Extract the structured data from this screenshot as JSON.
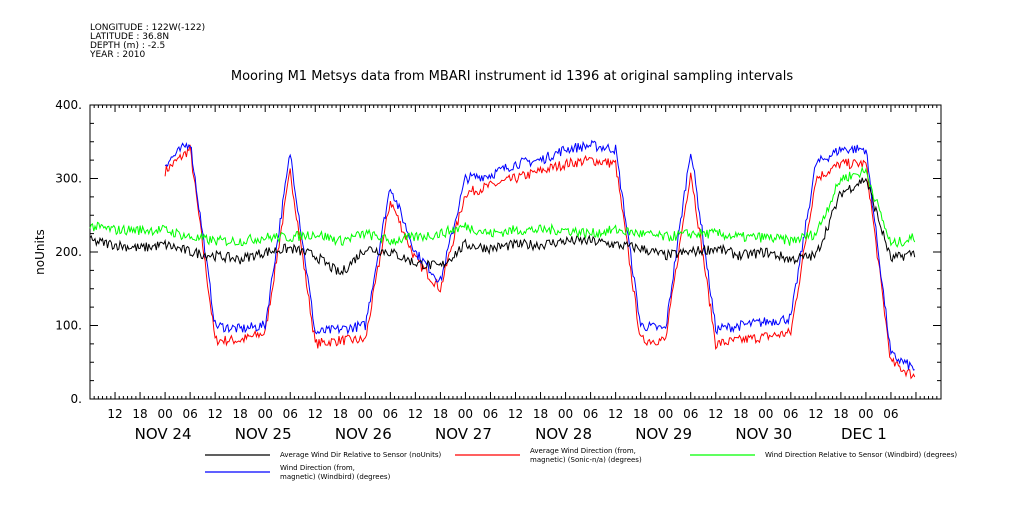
{
  "header": {
    "meta_lines": [
      "LONGITUDE : 122W(-122)",
      "LATITUDE : 36.8N",
      "DEPTH (m) : -2.5",
      "YEAR : 2010"
    ]
  },
  "chart_data": {
    "type": "line",
    "title": "Mooring M1 Metsys data from MBARI instrument id 1396 at original sampling intervals",
    "ylabel": "noUnits",
    "xlabel": "",
    "ylim": [
      0,
      400
    ],
    "xlim_hours": [
      -18,
      186
    ],
    "y_ticks": [
      0,
      100,
      200,
      300,
      400
    ],
    "x_tick_labels": [
      "12",
      "18",
      "00",
      "06",
      "12",
      "18",
      "00",
      "06",
      "12",
      "18",
      "00",
      "06",
      "12",
      "18",
      "00",
      "06",
      "12",
      "18",
      "00",
      "06",
      "12",
      "18",
      "00",
      "06",
      "12",
      "18",
      "00",
      "06",
      "12",
      "18",
      "00",
      "06"
    ],
    "date_labels": [
      "NOV 24",
      "NOV 25",
      "NOV 26",
      "NOV 27",
      "NOV 28",
      "NOV 29",
      "NOV 30",
      "DEC  1"
    ],
    "grid": false,
    "legend_position": "bottom",
    "series": [
      {
        "name": "Average Wind Dir Relative to Sensor (noUnits)",
        "color": "#000000"
      },
      {
        "name": "Average Wind Direction (from,\nmagnetic) (Sonic-n/a) (degrees)",
        "color": "#ff0000"
      },
      {
        "name": "Wind Direction Relative to Sensor (Windbird) (degrees)",
        "color": "#00ff00"
      },
      {
        "name": "Wind Direction (from,\nmagnetic) (Windbird) (degrees)",
        "color": "#0000ff"
      }
    ],
    "data_approx": {
      "black": [
        [
          -18,
          215
        ],
        [
          -12,
          210
        ],
        [
          -6,
          205
        ],
        [
          0,
          210
        ],
        [
          6,
          200
        ],
        [
          12,
          195
        ],
        [
          18,
          190
        ],
        [
          24,
          200
        ],
        [
          30,
          205
        ],
        [
          36,
          195
        ],
        [
          42,
          170
        ],
        [
          48,
          205
        ],
        [
          54,
          200
        ],
        [
          60,
          185
        ],
        [
          66,
          180
        ],
        [
          72,
          210
        ],
        [
          78,
          205
        ],
        [
          84,
          210
        ],
        [
          90,
          210
        ],
        [
          96,
          215
        ],
        [
          102,
          215
        ],
        [
          108,
          210
        ],
        [
          114,
          205
        ],
        [
          120,
          195
        ],
        [
          126,
          200
        ],
        [
          132,
          205
        ],
        [
          138,
          195
        ],
        [
          144,
          200
        ],
        [
          150,
          190
        ],
        [
          156,
          195
        ],
        [
          162,
          280
        ],
        [
          168,
          300
        ],
        [
          174,
          190
        ],
        [
          180,
          200
        ]
      ],
      "green": [
        [
          -18,
          235
        ],
        [
          -12,
          230
        ],
        [
          -6,
          230
        ],
        [
          0,
          230
        ],
        [
          6,
          220
        ],
        [
          12,
          215
        ],
        [
          18,
          215
        ],
        [
          24,
          220
        ],
        [
          30,
          220
        ],
        [
          36,
          225
        ],
        [
          42,
          215
        ],
        [
          48,
          225
        ],
        [
          54,
          215
        ],
        [
          60,
          220
        ],
        [
          66,
          225
        ],
        [
          72,
          235
        ],
        [
          78,
          225
        ],
        [
          84,
          230
        ],
        [
          90,
          230
        ],
        [
          96,
          230
        ],
        [
          102,
          225
        ],
        [
          108,
          230
        ],
        [
          114,
          225
        ],
        [
          120,
          220
        ],
        [
          126,
          225
        ],
        [
          132,
          225
        ],
        [
          138,
          220
        ],
        [
          144,
          220
        ],
        [
          150,
          215
        ],
        [
          156,
          225
        ],
        [
          162,
          300
        ],
        [
          168,
          310
        ],
        [
          174,
          210
        ],
        [
          180,
          220
        ]
      ],
      "red": [
        [
          0,
          310
        ],
        [
          6,
          340
        ],
        [
          12,
          80
        ],
        [
          18,
          80
        ],
        [
          24,
          90
        ],
        [
          30,
          310
        ],
        [
          36,
          75
        ],
        [
          42,
          80
        ],
        [
          48,
          80
        ],
        [
          54,
          270
        ],
        [
          60,
          190
        ],
        [
          66,
          150
        ],
        [
          72,
          280
        ],
        [
          78,
          290
        ],
        [
          84,
          300
        ],
        [
          90,
          310
        ],
        [
          96,
          320
        ],
        [
          102,
          325
        ],
        [
          108,
          320
        ],
        [
          114,
          80
        ],
        [
          120,
          80
        ],
        [
          126,
          310
        ],
        [
          132,
          75
        ],
        [
          138,
          80
        ],
        [
          144,
          85
        ],
        [
          150,
          90
        ],
        [
          156,
          300
        ],
        [
          162,
          320
        ],
        [
          168,
          320
        ],
        [
          174,
          50
        ],
        [
          180,
          30
        ]
      ],
      "blue": [
        [
          0,
          320
        ],
        [
          6,
          350
        ],
        [
          12,
          100
        ],
        [
          18,
          95
        ],
        [
          24,
          100
        ],
        [
          30,
          335
        ],
        [
          36,
          90
        ],
        [
          42,
          95
        ],
        [
          48,
          100
        ],
        [
          54,
          290
        ],
        [
          60,
          200
        ],
        [
          66,
          160
        ],
        [
          72,
          300
        ],
        [
          78,
          305
        ],
        [
          84,
          320
        ],
        [
          90,
          325
        ],
        [
          96,
          340
        ],
        [
          102,
          345
        ],
        [
          108,
          340
        ],
        [
          114,
          100
        ],
        [
          120,
          95
        ],
        [
          126,
          340
        ],
        [
          132,
          95
        ],
        [
          138,
          100
        ],
        [
          144,
          105
        ],
        [
          150,
          110
        ],
        [
          156,
          320
        ],
        [
          162,
          340
        ],
        [
          168,
          340
        ],
        [
          174,
          60
        ],
        [
          180,
          40
        ]
      ]
    }
  }
}
